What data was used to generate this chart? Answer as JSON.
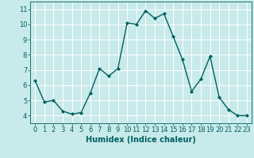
{
  "x": [
    0,
    1,
    2,
    3,
    4,
    5,
    6,
    7,
    8,
    9,
    10,
    11,
    12,
    13,
    14,
    15,
    16,
    17,
    18,
    19,
    20,
    21,
    22,
    23
  ],
  "y": [
    6.3,
    4.9,
    5.0,
    4.3,
    4.1,
    4.2,
    5.5,
    7.1,
    6.6,
    7.1,
    10.1,
    10.0,
    10.9,
    10.4,
    10.7,
    9.2,
    7.7,
    5.6,
    6.4,
    7.9,
    5.2,
    4.4,
    4.0,
    4.0
  ],
  "line_color": "#006060",
  "marker": "D",
  "marker_size": 2.0,
  "bg_color": "#c8eaea",
  "grid_color": "#ffffff",
  "xlabel": "Humidex (Indice chaleur)",
  "xlabel_color": "#006060",
  "tick_color": "#006060",
  "xlim": [
    -0.5,
    23.5
  ],
  "ylim": [
    3.5,
    11.5
  ],
  "yticks": [
    4,
    5,
    6,
    7,
    8,
    9,
    10,
    11
  ],
  "xticks": [
    0,
    1,
    2,
    3,
    4,
    5,
    6,
    7,
    8,
    9,
    10,
    11,
    12,
    13,
    14,
    15,
    16,
    17,
    18,
    19,
    20,
    21,
    22,
    23
  ],
  "linewidth": 1.0,
  "font_size": 6.0,
  "xlabel_fontsize": 7.0
}
